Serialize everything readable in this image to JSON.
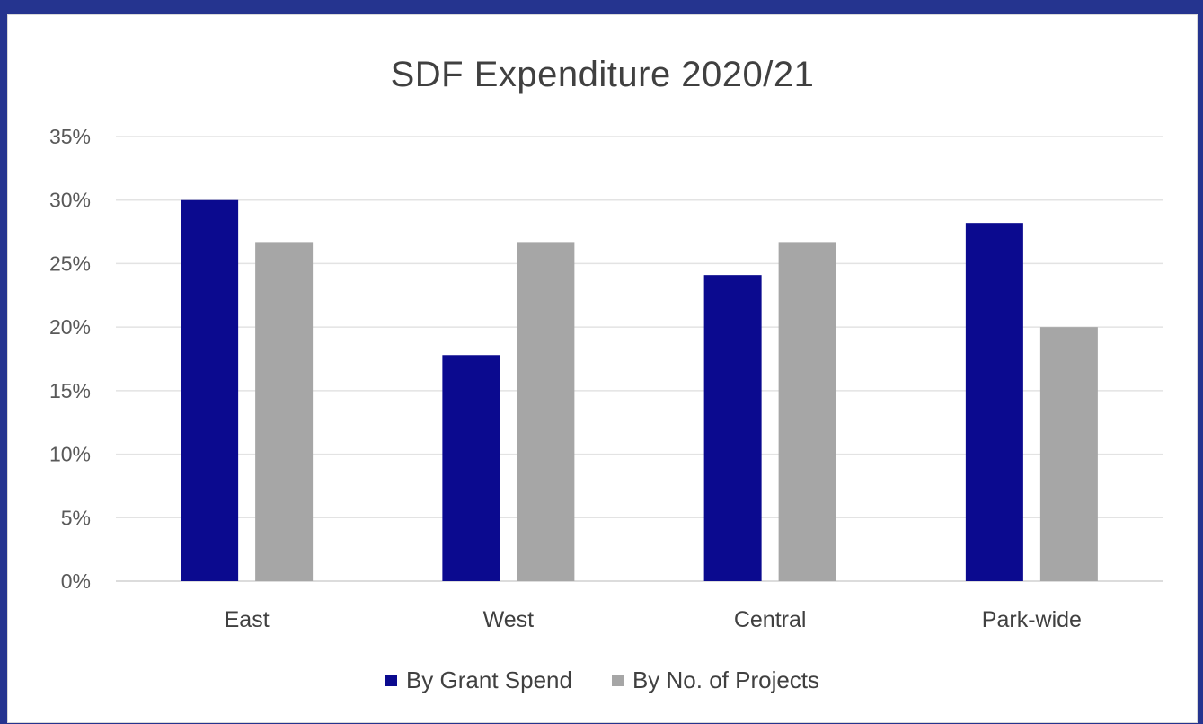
{
  "chart_data": {
    "type": "bar",
    "title": "SDF Expenditure 2020/21",
    "xlabel": "",
    "ylabel": "",
    "categories": [
      "East",
      "West",
      "Central",
      "Park-wide"
    ],
    "series": [
      {
        "name": "By Grant Spend",
        "color": "#0b0a8f",
        "values": [
          30.0,
          17.8,
          24.1,
          28.2
        ]
      },
      {
        "name": "By No. of Projects",
        "color": "#a6a6a6",
        "values": [
          26.7,
          26.7,
          26.7,
          20.0
        ]
      }
    ],
    "ylim": [
      0,
      35
    ],
    "yticks": [
      0,
      5,
      10,
      15,
      20,
      25,
      30,
      35
    ],
    "ytick_labels": [
      "0%",
      "5%",
      "10%",
      "15%",
      "20%",
      "25%",
      "30%",
      "35%"
    ],
    "grid": true,
    "legend_position": "bottom"
  }
}
